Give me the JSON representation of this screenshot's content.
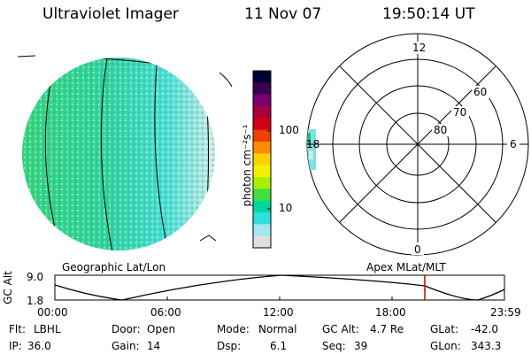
{
  "header": {
    "instrument": "Ultraviolet Imager",
    "date": "11 Nov 07",
    "time": "19:50:14 UT"
  },
  "colorbar": {
    "unit_label": "photon cm⁻²s⁻¹",
    "tick_labels": [
      "100",
      "10"
    ],
    "colors": [
      "#000033",
      "#3a0050",
      "#7a0070",
      "#a8003a",
      "#d00018",
      "#f04000",
      "#ff8c00",
      "#ffd000",
      "#f5f000",
      "#a8f000",
      "#40e040",
      "#00d8a0",
      "#30e0e0",
      "#a0e8ec",
      "#e0e0e0"
    ]
  },
  "left_panel": {
    "title": "Geographic Lat/Lon"
  },
  "right_panel": {
    "title": "Apex MLat/MLT",
    "mlt_labels": {
      "top": "12",
      "left": "18",
      "right": "6",
      "bottom": "0"
    },
    "lat_labels": [
      "60",
      "70",
      "80"
    ]
  },
  "altitude_plot": {
    "ylabel": "GC Alt",
    "ytick_top": "9.0",
    "ytick_bottom": "1.8",
    "xticks": [
      "00:00",
      "06:00",
      "12:00",
      "18:00",
      "23:59"
    ],
    "current_time_color": "#cc0000"
  },
  "status": {
    "row1": [
      {
        "key": "Flt:",
        "value": "LBHL"
      },
      {
        "key": "Door:",
        "value": "Open"
      },
      {
        "key": "Mode:",
        "value": "Normal"
      },
      {
        "key": "GC Alt:",
        "value": "4.7 Re"
      },
      {
        "key": "GLat:",
        "value": "-42.0"
      }
    ],
    "row2": [
      {
        "key": "IP:",
        "value": "36.0"
      },
      {
        "key": "Gain:",
        "value": "14"
      },
      {
        "key": "Dsp:",
        "value": "6.1"
      },
      {
        "key": "Seq:",
        "value": "39"
      },
      {
        "key": "GLon:",
        "value": "343.3"
      }
    ]
  }
}
